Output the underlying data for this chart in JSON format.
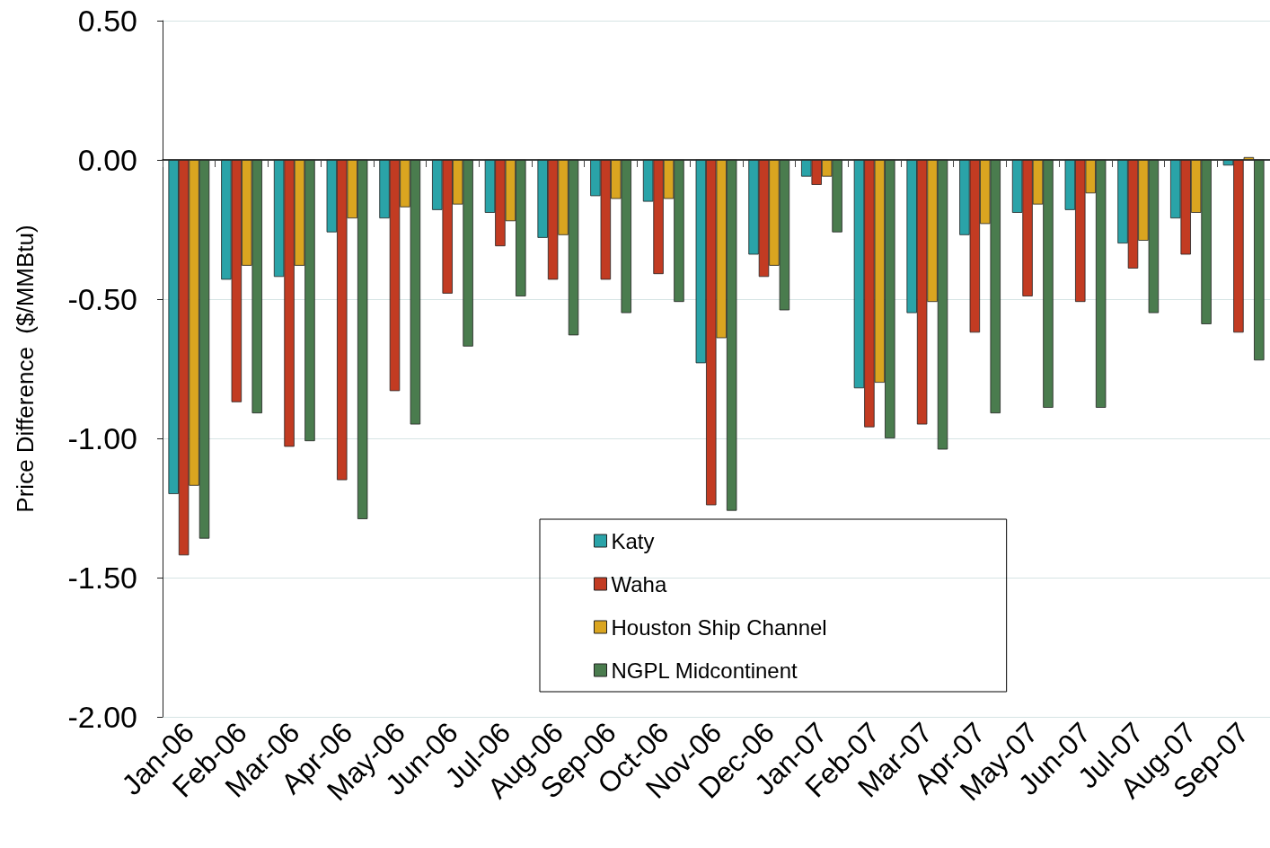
{
  "chart_data": {
    "type": "bar",
    "ylabel": "Price Difference  ($/MMBtu)",
    "categories": [
      "Jan-06",
      "Feb-06",
      "Mar-06",
      "Apr-06",
      "May-06",
      "Jun-06",
      "Jul-06",
      "Aug-06",
      "Sep-06",
      "Oct-06",
      "Nov-06",
      "Dec-06",
      "Jan-07",
      "Feb-07",
      "Mar-07",
      "Apr-07",
      "May-07",
      "Jun-07",
      "Jul-07",
      "Aug-07",
      "Sep-07"
    ],
    "series": [
      {
        "name": "Katy",
        "color": "#2aa3a8",
        "values": [
          -1.2,
          -0.43,
          -0.42,
          -0.26,
          -0.21,
          -0.18,
          -0.19,
          -0.28,
          -0.13,
          -0.15,
          -0.73,
          -0.34,
          -0.06,
          -0.82,
          -0.55,
          -0.27,
          -0.19,
          -0.18,
          -0.3,
          -0.21,
          -0.02
        ]
      },
      {
        "name": "Waha",
        "color": "#c23b22",
        "values": [
          -1.42,
          -0.87,
          -1.03,
          -1.15,
          -0.83,
          -0.48,
          -0.31,
          -0.43,
          -0.43,
          -0.41,
          -1.24,
          -0.42,
          -0.09,
          -0.96,
          -0.95,
          -0.62,
          -0.49,
          -0.51,
          -0.39,
          -0.34,
          -0.62
        ]
      },
      {
        "name": "Houston Ship Channel",
        "color": "#daa520",
        "values": [
          -1.17,
          -0.38,
          -0.38,
          -0.21,
          -0.17,
          -0.16,
          -0.22,
          -0.27,
          -0.14,
          -0.14,
          -0.64,
          -0.38,
          -0.06,
          -0.8,
          -0.51,
          -0.23,
          -0.16,
          -0.12,
          -0.29,
          -0.19,
          0.01
        ]
      },
      {
        "name": "NGPL Midcontinent",
        "color": "#4a7c4e",
        "values": [
          -1.36,
          -0.91,
          -1.01,
          -1.29,
          -0.95,
          -0.67,
          -0.49,
          -0.63,
          -0.55,
          -0.51,
          -1.26,
          -0.54,
          -0.26,
          -1.0,
          -1.04,
          -0.91,
          -0.89,
          -0.89,
          -0.55,
          -0.59,
          -0.72
        ]
      }
    ],
    "ylim": [
      -2,
      0.5
    ],
    "yticks": [
      {
        "value": -2,
        "label": "-2.00"
      },
      {
        "value": -1.5,
        "label": "-1.50"
      },
      {
        "value": -1,
        "label": "-1.00"
      },
      {
        "value": -0.5,
        "label": "-0.50"
      },
      {
        "value": 0,
        "label": "0.00"
      },
      {
        "value": 0.5,
        "label": "0.50"
      }
    ],
    "grid": "y",
    "legend": "bottom"
  }
}
